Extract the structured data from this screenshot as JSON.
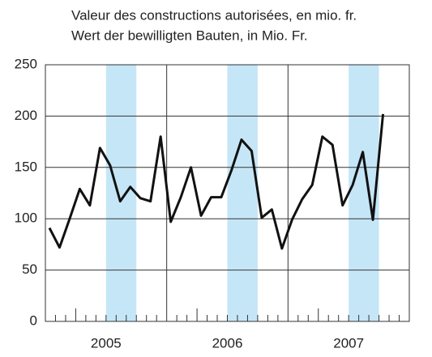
{
  "chart_data": {
    "type": "line",
    "title": "Valeur des constructions autorisées, en mio. fr.",
    "subtitle": "Wert der bewilligten Bauten, in Mio. Fr.",
    "categories": [
      null,
      null,
      null,
      null,
      null,
      null,
      null,
      null,
      null,
      null,
      null,
      null,
      null,
      null,
      null,
      null,
      null,
      null,
      null,
      null,
      null,
      null,
      null,
      null,
      null,
      null,
      null,
      null,
      null,
      null,
      null,
      null,
      null,
      null
    ],
    "year_labels": [
      "2005",
      "2006",
      "2007"
    ],
    "series": [
      {
        "color": "#111111",
        "values": [
          91,
          72,
          100,
          129,
          113,
          169,
          152,
          117,
          131,
          120,
          117,
          180,
          97,
          121,
          150,
          103,
          121,
          121,
          147,
          177,
          166,
          101,
          109,
          71,
          99,
          119,
          133,
          180,
          172,
          113,
          133,
          165,
          99,
          202
        ]
      }
    ],
    "ylim": [
      0,
      250
    ],
    "yticks": [
      0,
      50,
      100,
      150,
      200,
      250
    ],
    "grid": true
  }
}
